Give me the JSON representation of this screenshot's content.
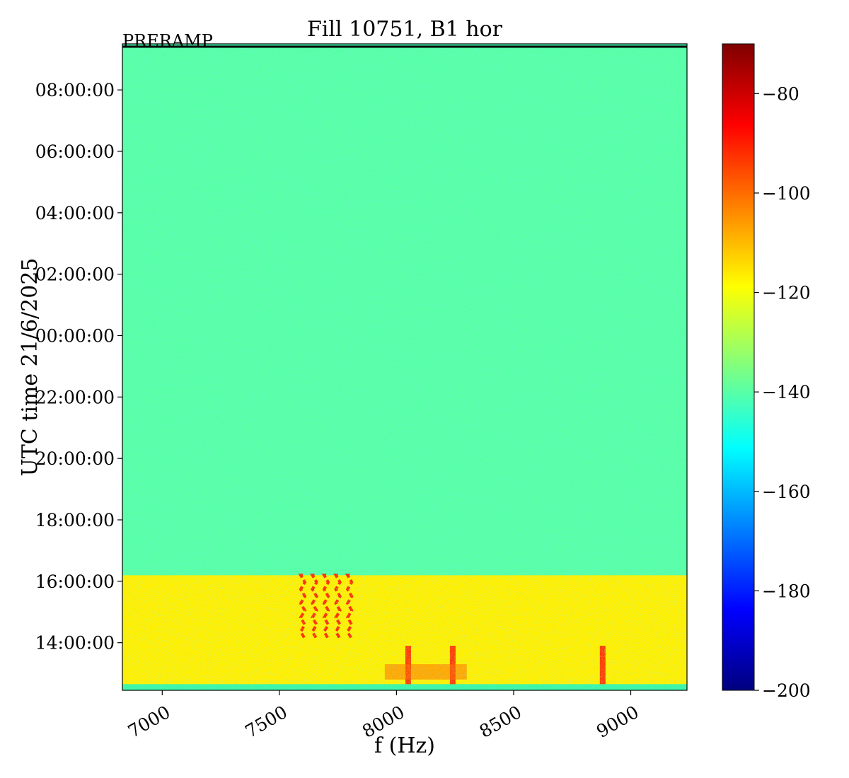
{
  "chart_data": {
    "type": "heatmap",
    "title": "Fill 10751, B1 hor",
    "xlabel": "f (Hz)",
    "ylabel": "UTC time 21/6/2025",
    "annotation": "PRERAMP",
    "xlim": [
      6830,
      9240
    ],
    "x_ticks": [
      7000,
      7500,
      8000,
      8500,
      9000
    ],
    "x_tick_labels": [
      "7000",
      "7500",
      "8000",
      "8500",
      "9000"
    ],
    "y_ticks": [
      "14:00:00",
      "16:00:00",
      "18:00:00",
      "20:00:00",
      "22:00:00",
      "00:00:00",
      "02:00:00",
      "04:00:00",
      "06:00:00",
      "08:00:00"
    ],
    "y_tick_hours": [
      14,
      16,
      18,
      20,
      22,
      24,
      26,
      28,
      30,
      32
    ],
    "ylim_hours": [
      12.45,
      33.5
    ],
    "colormap": "jet",
    "colorbar": {
      "range": [
        -200,
        -70
      ],
      "ticks": [
        -80,
        -100,
        -120,
        -140,
        -160,
        -180,
        -200
      ],
      "tick_labels": [
        "−80",
        "−100",
        "−120",
        "−140",
        "−160",
        "−180",
        "−200"
      ]
    },
    "regions": [
      {
        "t_start": 12.65,
        "t_end": 16.2,
        "level_dB": -117
      },
      {
        "t_start": 16.2,
        "t_end": 33.4,
        "level_dB": -140
      }
    ],
    "bright_lines_hz": [
      7600,
      7650,
      7700,
      7750,
      7800
    ],
    "peak_features_hz": [
      8050,
      8240,
      8880
    ]
  }
}
